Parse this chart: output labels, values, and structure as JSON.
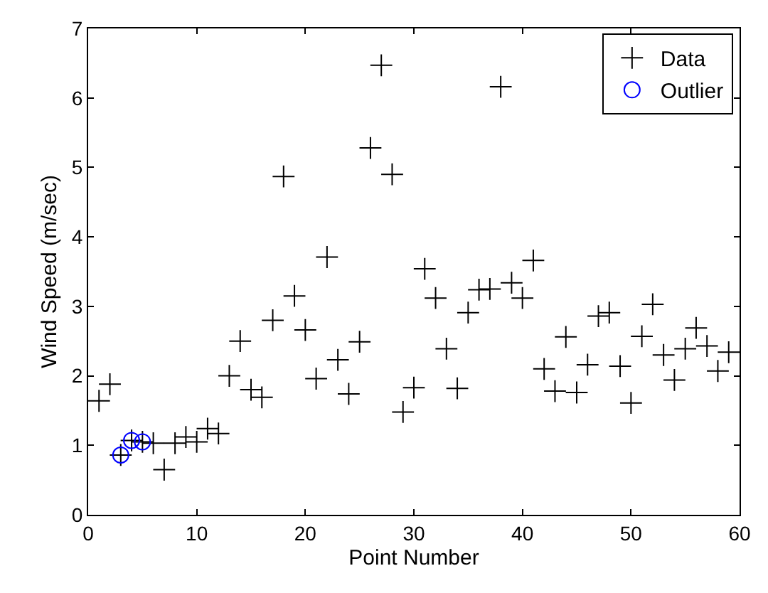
{
  "chart_data": {
    "type": "scatter",
    "xlabel": "Point Number",
    "ylabel": "Wind Speed (m/sec)",
    "xlim": [
      0,
      60
    ],
    "xticks": [
      0,
      10,
      20,
      30,
      40,
      50,
      60
    ],
    "ylim": [
      0,
      7
    ],
    "yticks": [
      0,
      1,
      2,
      3,
      4,
      5,
      6,
      7
    ],
    "legend": "top right",
    "series": [
      {
        "name": "Data",
        "color": "#000000",
        "marker": "cross",
        "x": [
          1,
          2,
          3,
          4,
          5,
          6,
          7,
          8,
          9,
          10,
          11,
          12,
          13,
          14,
          15,
          16,
          17,
          18,
          19,
          20,
          21,
          22,
          23,
          24,
          25,
          26,
          27,
          28,
          29,
          30,
          31,
          32,
          33,
          34,
          35,
          36,
          37,
          38,
          39,
          40,
          41,
          42,
          43,
          44,
          45,
          46,
          47,
          48,
          49,
          50,
          51,
          52,
          53,
          54,
          55,
          56,
          57,
          58,
          59
        ],
        "values": [
          1.64,
          1.88,
          0.86,
          1.07,
          1.05,
          1.03,
          0.65,
          1.03,
          1.12,
          1.05,
          1.24,
          1.17,
          2.0,
          2.5,
          1.8,
          1.69,
          2.8,
          4.87,
          3.15,
          2.66,
          1.96,
          3.71,
          2.23,
          1.74,
          2.49,
          5.28,
          6.47,
          4.9,
          1.48,
          1.83,
          3.54,
          3.12,
          2.39,
          1.82,
          2.91,
          3.24,
          3.25,
          6.16,
          3.34,
          3.12,
          3.66,
          2.1,
          1.78,
          2.56,
          1.76,
          2.16,
          2.86,
          2.91,
          2.14,
          1.61,
          2.57,
          3.03,
          2.3,
          1.94,
          2.39,
          2.69,
          2.43,
          2.07,
          2.34
        ]
      },
      {
        "name": "Outlier",
        "color": "#0000ff",
        "marker": "circle",
        "x": [
          3,
          4,
          5
        ],
        "values": [
          0.86,
          1.07,
          1.05
        ]
      }
    ]
  }
}
